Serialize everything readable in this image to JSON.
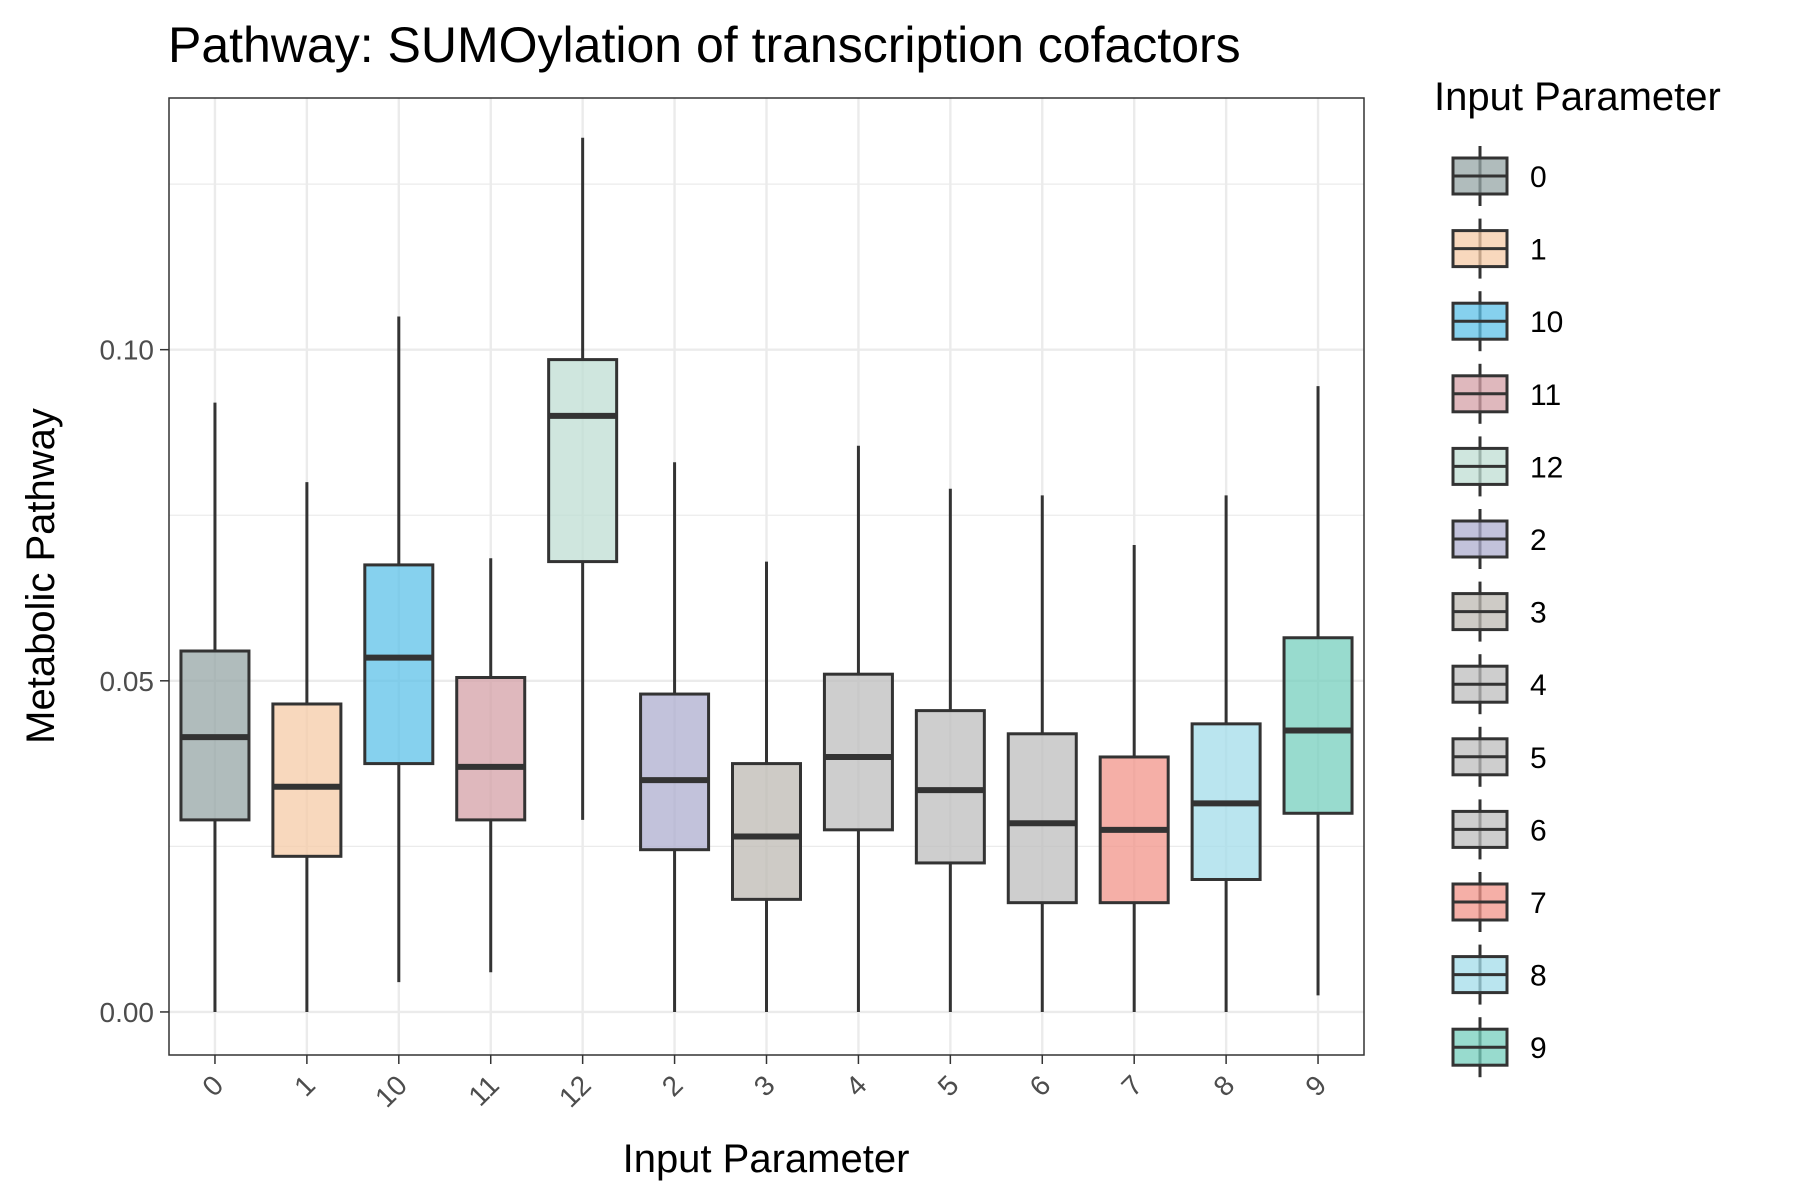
{
  "chart_data": {
    "type": "box",
    "title": "Pathway: SUMOylation of transcription cofactors",
    "xlabel": "Input Parameter",
    "ylabel": "Metabolic Pathway",
    "ylim": [
      -0.0065,
      0.138
    ],
    "yticks": [
      0.0,
      0.05,
      0.1
    ],
    "ytick_labels": [
      "0.00",
      "0.05",
      "0.10"
    ],
    "grid": true,
    "legend": {
      "title": "Input Parameter",
      "position": "right"
    },
    "categories": [
      "0",
      "1",
      "10",
      "11",
      "12",
      "2",
      "3",
      "4",
      "5",
      "6",
      "7",
      "8",
      "9"
    ],
    "boxes": [
      {
        "name": "0",
        "whisker_low": 0.0,
        "q1": 0.029,
        "median": 0.0415,
        "q3": 0.0545,
        "whisker_high": 0.092,
        "color": "#95a5a6"
      },
      {
        "name": "1",
        "whisker_low": 0.0,
        "q1": 0.0235,
        "median": 0.034,
        "q3": 0.0465,
        "whisker_high": 0.08,
        "color": "#f5cba7"
      },
      {
        "name": "10",
        "whisker_low": 0.0045,
        "q1": 0.0375,
        "median": 0.0535,
        "q3": 0.0675,
        "whisker_high": 0.105,
        "color": "#5dc1e8"
      },
      {
        "name": "11",
        "whisker_low": 0.006,
        "q1": 0.029,
        "median": 0.037,
        "q3": 0.0505,
        "whisker_high": 0.0685,
        "color": "#d4a0a7"
      },
      {
        "name": "12",
        "whisker_low": 0.029,
        "q1": 0.068,
        "median": 0.09,
        "q3": 0.0985,
        "whisker_high": 0.132,
        "color": "#bfded3"
      },
      {
        "name": "2",
        "whisker_low": 0.0,
        "q1": 0.0245,
        "median": 0.035,
        "q3": 0.048,
        "whisker_high": 0.083,
        "color": "#aeadcf"
      },
      {
        "name": "3",
        "whisker_low": 0.0,
        "q1": 0.017,
        "median": 0.0265,
        "q3": 0.0375,
        "whisker_high": 0.068,
        "color": "#bdbab3"
      },
      {
        "name": "4",
        "whisker_low": 0.0,
        "q1": 0.0275,
        "median": 0.0385,
        "q3": 0.051,
        "whisker_high": 0.0855,
        "color": "#bdbdbd"
      },
      {
        "name": "5",
        "whisker_low": 0.0,
        "q1": 0.0225,
        "median": 0.0335,
        "q3": 0.0455,
        "whisker_high": 0.079,
        "color": "#bdbdbd"
      },
      {
        "name": "6",
        "whisker_low": 0.0,
        "q1": 0.0165,
        "median": 0.0285,
        "q3": 0.042,
        "whisker_high": 0.078,
        "color": "#bdbdbd"
      },
      {
        "name": "7",
        "whisker_low": 0.0,
        "q1": 0.0165,
        "median": 0.0275,
        "q3": 0.0385,
        "whisker_high": 0.0705,
        "color": "#f1948a"
      },
      {
        "name": "8",
        "whisker_low": 0.0,
        "q1": 0.02,
        "median": 0.0315,
        "q3": 0.0435,
        "whisker_high": 0.078,
        "color": "#a3dcea"
      },
      {
        "name": "9",
        "whisker_low": 0.0025,
        "q1": 0.03,
        "median": 0.0425,
        "q3": 0.0565,
        "whisker_high": 0.0945,
        "color": "#76cfbd"
      }
    ],
    "legend_order": [
      "0",
      "1",
      "10",
      "11",
      "12",
      "2",
      "3",
      "4",
      "5",
      "6",
      "7",
      "8",
      "9"
    ]
  }
}
